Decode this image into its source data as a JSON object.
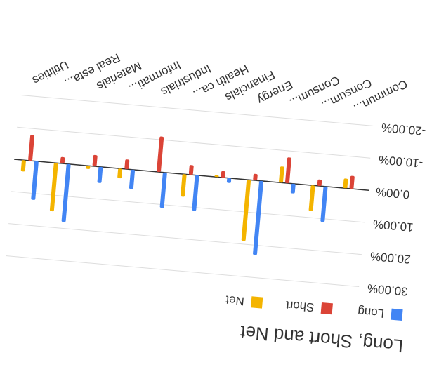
{
  "chart_data": {
    "type": "bar",
    "title": "Long, Short and Net",
    "categories": [
      "Commun...",
      "Consum...",
      "Consum...",
      "Energy",
      "Financials",
      "Health ca...",
      "Industrials",
      "Informati...",
      "Materials",
      "Real esta...",
      "Utilities"
    ],
    "series": [
      {
        "name": "Long",
        "color": "#4285f4",
        "values": [
          0,
          11,
          3,
          23,
          1.5,
          11,
          11,
          6,
          5,
          18,
          12
        ]
      },
      {
        "name": "Short",
        "color": "#db4437",
        "values": [
          -4,
          -2,
          -8,
          -2,
          -2,
          -3,
          -11,
          -3,
          -3.5,
          -2,
          -8
        ]
      },
      {
        "name": "Net",
        "color": "#f4b400",
        "values": [
          -3,
          8,
          -5,
          19,
          -0.5,
          7,
          0,
          3,
          1,
          15,
          3.5
        ]
      }
    ],
    "ylim": [
      -20,
      30
    ],
    "yticks": [
      {
        "value": -20,
        "label": "-20.00%"
      },
      {
        "value": -10,
        "label": "-10.00%"
      },
      {
        "value": 0,
        "label": "0.00%"
      },
      {
        "value": 10,
        "label": "10.00%"
      },
      {
        "value": 20,
        "label": "20.00%"
      },
      {
        "value": 30,
        "label": "30.00%"
      }
    ],
    "grid": true
  }
}
